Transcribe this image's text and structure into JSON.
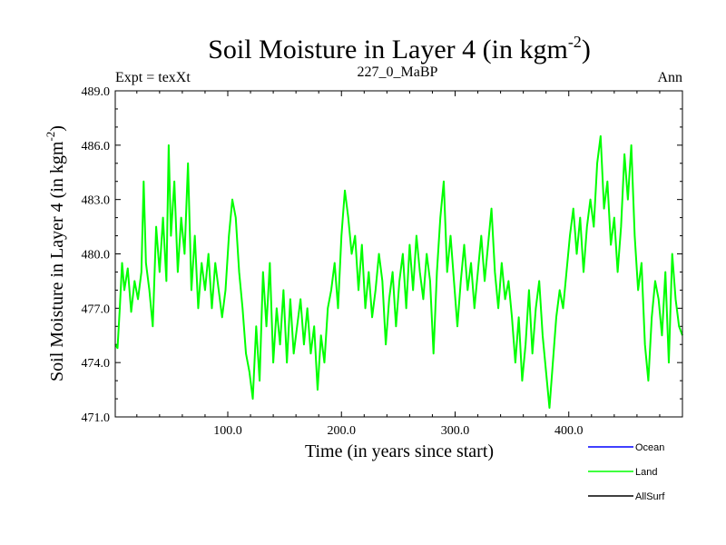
{
  "chart_data": {
    "type": "line",
    "title": "Soil Moisture in Layer 4 (in kgm",
    "title_sup": "-2",
    "title_end": ")",
    "subtitle_left": "Expt = texXt",
    "subtitle_center": "227_0_MaBP",
    "subtitle_right": "Ann",
    "xlabel": "Time (in years since start)",
    "ylabel": "Soil Moisture in Layer 4 (in kgm",
    "ylabel_sup": "-2",
    "ylabel_end": ")",
    "xlim": [
      1,
      500
    ],
    "ylim": [
      471.0,
      489.0
    ],
    "xticks": [
      100,
      200,
      300,
      400
    ],
    "xtick_labels": [
      "100.0",
      "200.0",
      "300.0",
      "400.0"
    ],
    "yticks": [
      471,
      474,
      477,
      480,
      483,
      486,
      489
    ],
    "ytick_labels": [
      "471.0",
      "474.0",
      "477.0",
      "480.0",
      "483.0",
      "486.0",
      "489.0"
    ],
    "legend": [
      {
        "name": "Ocean",
        "color": "#0000ff"
      },
      {
        "name": "Land",
        "color": "#00ff00"
      },
      {
        "name": "AllSurf",
        "color": "#000000"
      }
    ],
    "series": [
      {
        "name": "Land",
        "color": "#00ff00",
        "keypoints": [
          [
            1,
            475.0
          ],
          [
            3,
            474.8
          ],
          [
            5,
            477.0
          ],
          [
            7,
            479.5
          ],
          [
            9,
            478.0
          ],
          [
            12,
            479.2
          ],
          [
            15,
            476.8
          ],
          [
            18,
            478.5
          ],
          [
            21,
            477.5
          ],
          [
            24,
            479.0
          ],
          [
            26,
            484.0
          ],
          [
            28,
            479.5
          ],
          [
            31,
            478.0
          ],
          [
            34,
            476.0
          ],
          [
            37,
            481.5
          ],
          [
            40,
            479.0
          ],
          [
            43,
            482.0
          ],
          [
            46,
            478.5
          ],
          [
            48,
            486.0
          ],
          [
            50,
            481.0
          ],
          [
            53,
            484.0
          ],
          [
            56,
            479.0
          ],
          [
            59,
            482.0
          ],
          [
            62,
            480.0
          ],
          [
            65,
            485.0
          ],
          [
            68,
            478.0
          ],
          [
            71,
            481.0
          ],
          [
            74,
            477.0
          ],
          [
            77,
            479.5
          ],
          [
            80,
            478.0
          ],
          [
            83,
            480.0
          ],
          [
            86,
            477.0
          ],
          [
            89,
            479.5
          ],
          [
            92,
            478.0
          ],
          [
            95,
            476.5
          ],
          [
            98,
            478.0
          ],
          [
            101,
            481.0
          ],
          [
            104,
            483.0
          ],
          [
            107,
            482.0
          ],
          [
            110,
            479.0
          ],
          [
            113,
            477.0
          ],
          [
            116,
            474.5
          ],
          [
            119,
            473.5
          ],
          [
            122,
            472.0
          ],
          [
            125,
            476.0
          ],
          [
            128,
            473.0
          ],
          [
            131,
            479.0
          ],
          [
            134,
            476.0
          ],
          [
            137,
            479.5
          ],
          [
            140,
            474.0
          ],
          [
            143,
            477.0
          ],
          [
            146,
            475.0
          ],
          [
            149,
            478.0
          ],
          [
            152,
            474.0
          ],
          [
            155,
            477.5
          ],
          [
            158,
            474.5
          ],
          [
            161,
            476.0
          ],
          [
            164,
            477.5
          ],
          [
            167,
            475.0
          ],
          [
            170,
            477.0
          ],
          [
            173,
            474.5
          ],
          [
            176,
            476.0
          ],
          [
            179,
            472.5
          ],
          [
            182,
            475.5
          ],
          [
            185,
            474.0
          ],
          [
            188,
            477.0
          ],
          [
            191,
            478.0
          ],
          [
            194,
            479.5
          ],
          [
            197,
            477.0
          ],
          [
            200,
            481.0
          ],
          [
            203,
            483.5
          ],
          [
            206,
            482.0
          ],
          [
            209,
            480.0
          ],
          [
            212,
            481.0
          ],
          [
            215,
            478.0
          ],
          [
            218,
            480.5
          ],
          [
            221,
            477.0
          ],
          [
            224,
            479.0
          ],
          [
            227,
            476.5
          ],
          [
            230,
            478.0
          ],
          [
            233,
            480.0
          ],
          [
            236,
            478.5
          ],
          [
            239,
            475.0
          ],
          [
            242,
            477.5
          ],
          [
            245,
            479.0
          ],
          [
            248,
            476.0
          ],
          [
            251,
            478.5
          ],
          [
            254,
            480.0
          ],
          [
            257,
            477.0
          ],
          [
            260,
            480.5
          ],
          [
            263,
            478.0
          ],
          [
            266,
            481.0
          ],
          [
            269,
            479.0
          ],
          [
            272,
            477.5
          ],
          [
            275,
            480.0
          ],
          [
            278,
            478.5
          ],
          [
            281,
            474.5
          ],
          [
            284,
            479.0
          ],
          [
            287,
            482.0
          ],
          [
            290,
            484.0
          ],
          [
            293,
            479.0
          ],
          [
            296,
            481.0
          ],
          [
            299,
            478.5
          ],
          [
            302,
            476.0
          ],
          [
            305,
            478.5
          ],
          [
            308,
            480.5
          ],
          [
            311,
            478.0
          ],
          [
            314,
            479.5
          ],
          [
            317,
            477.0
          ],
          [
            320,
            479.0
          ],
          [
            323,
            481.0
          ],
          [
            326,
            478.5
          ],
          [
            329,
            480.5
          ],
          [
            332,
            482.5
          ],
          [
            335,
            479.0
          ],
          [
            338,
            477.0
          ],
          [
            341,
            479.5
          ],
          [
            344,
            477.5
          ],
          [
            347,
            478.5
          ],
          [
            350,
            476.5
          ],
          [
            353,
            474.0
          ],
          [
            356,
            476.5
          ],
          [
            359,
            473.0
          ],
          [
            362,
            475.0
          ],
          [
            365,
            478.0
          ],
          [
            368,
            474.5
          ],
          [
            371,
            477.0
          ],
          [
            374,
            478.5
          ],
          [
            377,
            475.5
          ],
          [
            380,
            473.5
          ],
          [
            383,
            471.5
          ],
          [
            386,
            474.0
          ],
          [
            389,
            476.5
          ],
          [
            392,
            478.0
          ],
          [
            395,
            477.0
          ],
          [
            398,
            479.0
          ],
          [
            401,
            481.0
          ],
          [
            404,
            482.5
          ],
          [
            407,
            480.0
          ],
          [
            410,
            482.0
          ],
          [
            413,
            479.0
          ],
          [
            416,
            481.5
          ],
          [
            419,
            483.0
          ],
          [
            422,
            481.5
          ],
          [
            425,
            485.0
          ],
          [
            428,
            486.5
          ],
          [
            431,
            482.5
          ],
          [
            434,
            484.0
          ],
          [
            437,
            480.5
          ],
          [
            440,
            482.0
          ],
          [
            443,
            479.0
          ],
          [
            446,
            481.5
          ],
          [
            449,
            485.5
          ],
          [
            452,
            483.0
          ],
          [
            455,
            486.0
          ],
          [
            458,
            481.0
          ],
          [
            461,
            478.0
          ],
          [
            464,
            479.5
          ],
          [
            467,
            475.0
          ],
          [
            470,
            473.0
          ],
          [
            473,
            476.5
          ],
          [
            476,
            478.5
          ],
          [
            479,
            477.5
          ],
          [
            482,
            475.5
          ],
          [
            485,
            479.0
          ],
          [
            488,
            474.0
          ],
          [
            491,
            480.0
          ],
          [
            494,
            477.5
          ],
          [
            497,
            476.0
          ],
          [
            500,
            475.5
          ]
        ]
      }
    ]
  }
}
